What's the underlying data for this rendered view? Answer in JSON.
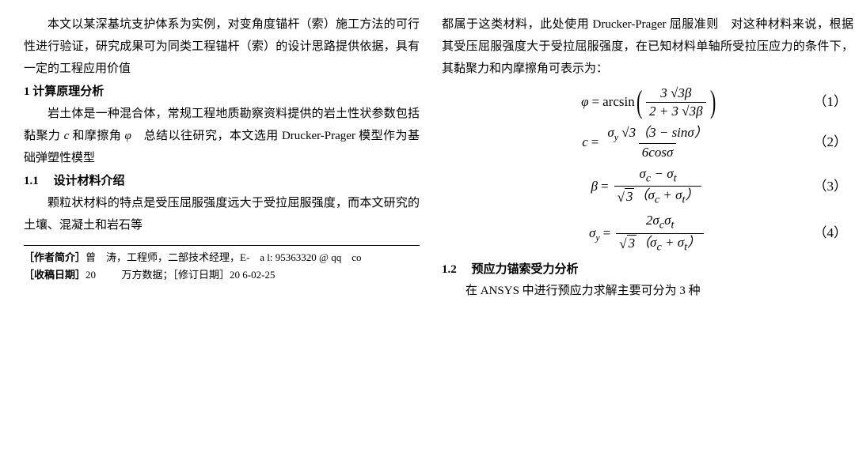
{
  "left": {
    "intro": "本文以某深基坑支护体系为实例，对变角度锚杆（索）施工方法的可行性进行验证，研究成果可为同类工程锚杆（索）的设计思路提供依据，具有一定的工程应用价值",
    "h1": "1 计算原理分析",
    "p1a": "岩土体是一种混合体，常规工程地质勘察资料提供的岩土性状参数包括黏聚力 ",
    "p1b": " 和摩擦角 ",
    "p1c": "　总结以往研究，本文选用 Drucker-Prager 模型作为基础弹塑性模型",
    "c_sym": "c",
    "phi_sym": "φ",
    "h11_num": "1.1",
    "h11_title": "设计材料介绍",
    "p2": "颗粒状材料的特点是受压屈服强度远大于受拉屈服强度，而本文研究的土壤、混凝土和岩石等",
    "fn_author_lbl": "［作者简介］",
    "fn_author": "曾　涛，工程师，二部技术经理，E-　a l: 95363320 @ qq　co",
    "fn_date_lbl": "［收稿日期］",
    "fn_date_a": "20",
    "fn_wf": "万方数据",
    "fn_date_b": "；［修订日期］20 6-02-25"
  },
  "right": {
    "p1": "都属于这类材料，此处使用 Drucker-Prager 屈服准则　对这种材料来说，根据其受压屈服强度大于受拉屈服强度，在已知材料单轴所受拉压应力的条件下，其黏聚力和内摩擦角可表示为：",
    "eq1": {
      "lhs": "φ",
      "fn": "arcsin",
      "num": "3 √3β",
      "den": "2 + 3 √3β",
      "num_label": "（1）"
    },
    "eq2": {
      "lhs": "c",
      "num_a": "σ",
      "num_sub": "y",
      "num_b": " √3（3 − sinσ）",
      "den": "6cosσ",
      "num_label": "（2）"
    },
    "eq3": {
      "lhs": "β",
      "num": "σ<sub>c</sub> − σ<sub>t</sub>",
      "den_in": "（σ<sub>c</sub> + σ<sub>t</sub>）",
      "sqrt3": "3",
      "num_label": "（3）"
    },
    "eq4": {
      "lhs": "σ",
      "lhs_sub": "y",
      "num": "2σ<sub>c</sub>σ<sub>t</sub>",
      "den_in": "（σ<sub>c</sub> + σ<sub>t</sub>）",
      "sqrt3": "3",
      "num_label": "（4）"
    },
    "h12_num": "1.2",
    "h12_title": "预应力锚索受力分析",
    "p2": "在 ANSYS 中进行预应力求解主要可分为 3 种"
  }
}
